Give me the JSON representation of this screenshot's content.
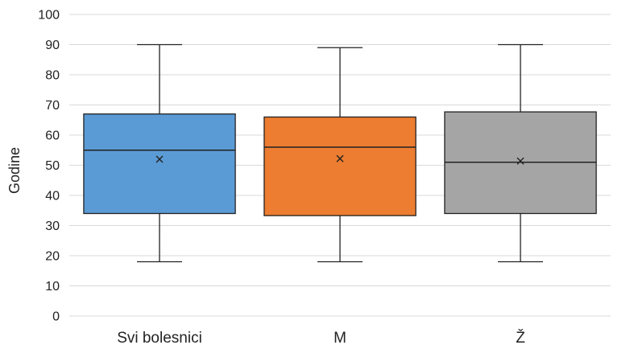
{
  "chart_data": {
    "type": "boxplot",
    "ylabel": "Godine",
    "ylim": [
      0,
      100
    ],
    "yticks": [
      "0",
      "10",
      "20",
      "30",
      "40",
      "50",
      "60",
      "70",
      "80",
      "90",
      "100"
    ],
    "ytick_values": [
      0,
      10,
      20,
      30,
      40,
      50,
      60,
      70,
      80,
      90,
      100
    ],
    "grid": true,
    "categories": [
      "Svi bolesnici",
      "M",
      "Ž"
    ],
    "boxes": [
      {
        "category": "Svi bolesnici",
        "min": 18,
        "q1": 34,
        "median": 55,
        "mean": 52,
        "q3": 67,
        "max": 90,
        "color": "#5b9bd5"
      },
      {
        "category": "M",
        "min": 18,
        "q1": 33.3,
        "median": 56,
        "mean": 52.2,
        "q3": 66,
        "max": 89,
        "color": "#ed7d31"
      },
      {
        "category": "Ž",
        "min": 18,
        "q1": 34,
        "median": 51,
        "mean": 51.4,
        "q3": 67.7,
        "max": 90,
        "color": "#a5a5a5"
      }
    ]
  }
}
